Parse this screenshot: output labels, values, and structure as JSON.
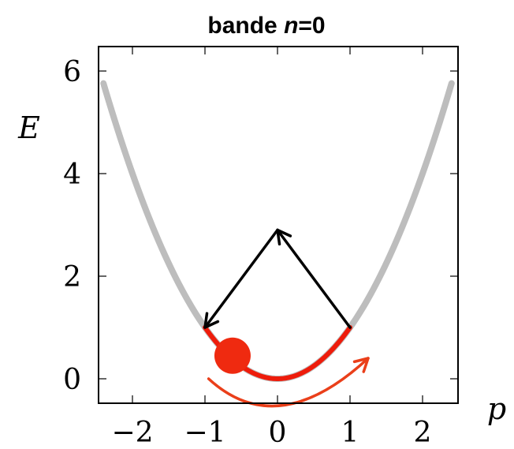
{
  "chart_data": {
    "type": "line",
    "title_prefix": "bande ",
    "title_var": "n",
    "title_suffix": "=0",
    "xlabel": "p",
    "ylabel": "E",
    "xlim": [
      -2.5,
      2.5
    ],
    "ylim": [
      -0.5,
      6.5
    ],
    "x_ticks": [
      -2,
      -1,
      0,
      1,
      2
    ],
    "x_tick_labels": [
      "−2",
      "−1",
      "0",
      "1",
      "2"
    ],
    "y_ticks": [
      0,
      2,
      4,
      6
    ],
    "y_tick_labels": [
      "0",
      "2",
      "4",
      "6"
    ],
    "grid": false,
    "series": [
      {
        "curve": "E = p^2",
        "x_range": [
          -2.4,
          2.4
        ],
        "color": "#bdbdbd"
      },
      {
        "curve": "E = p^2",
        "x_range": [
          -1,
          1
        ],
        "color": "#ee1c0b"
      }
    ],
    "particle": {
      "x": -0.62,
      "y": 0.45,
      "color": "#ef2a10"
    },
    "motion_arrow": {
      "points": [
        [
          -0.95,
          0.0
        ],
        [
          0.0,
          -0.65
        ],
        [
          1.25,
          0.4
        ]
      ],
      "color": "#ea3f1a"
    },
    "reflection_arrows": [
      {
        "from": [
          1.0,
          1.0
        ],
        "to": [
          0.0,
          2.9
        ],
        "color": "#000000"
      },
      {
        "from": [
          0.0,
          2.9
        ],
        "to": [
          -1.0,
          1.0
        ],
        "color": "#000000"
      }
    ]
  }
}
